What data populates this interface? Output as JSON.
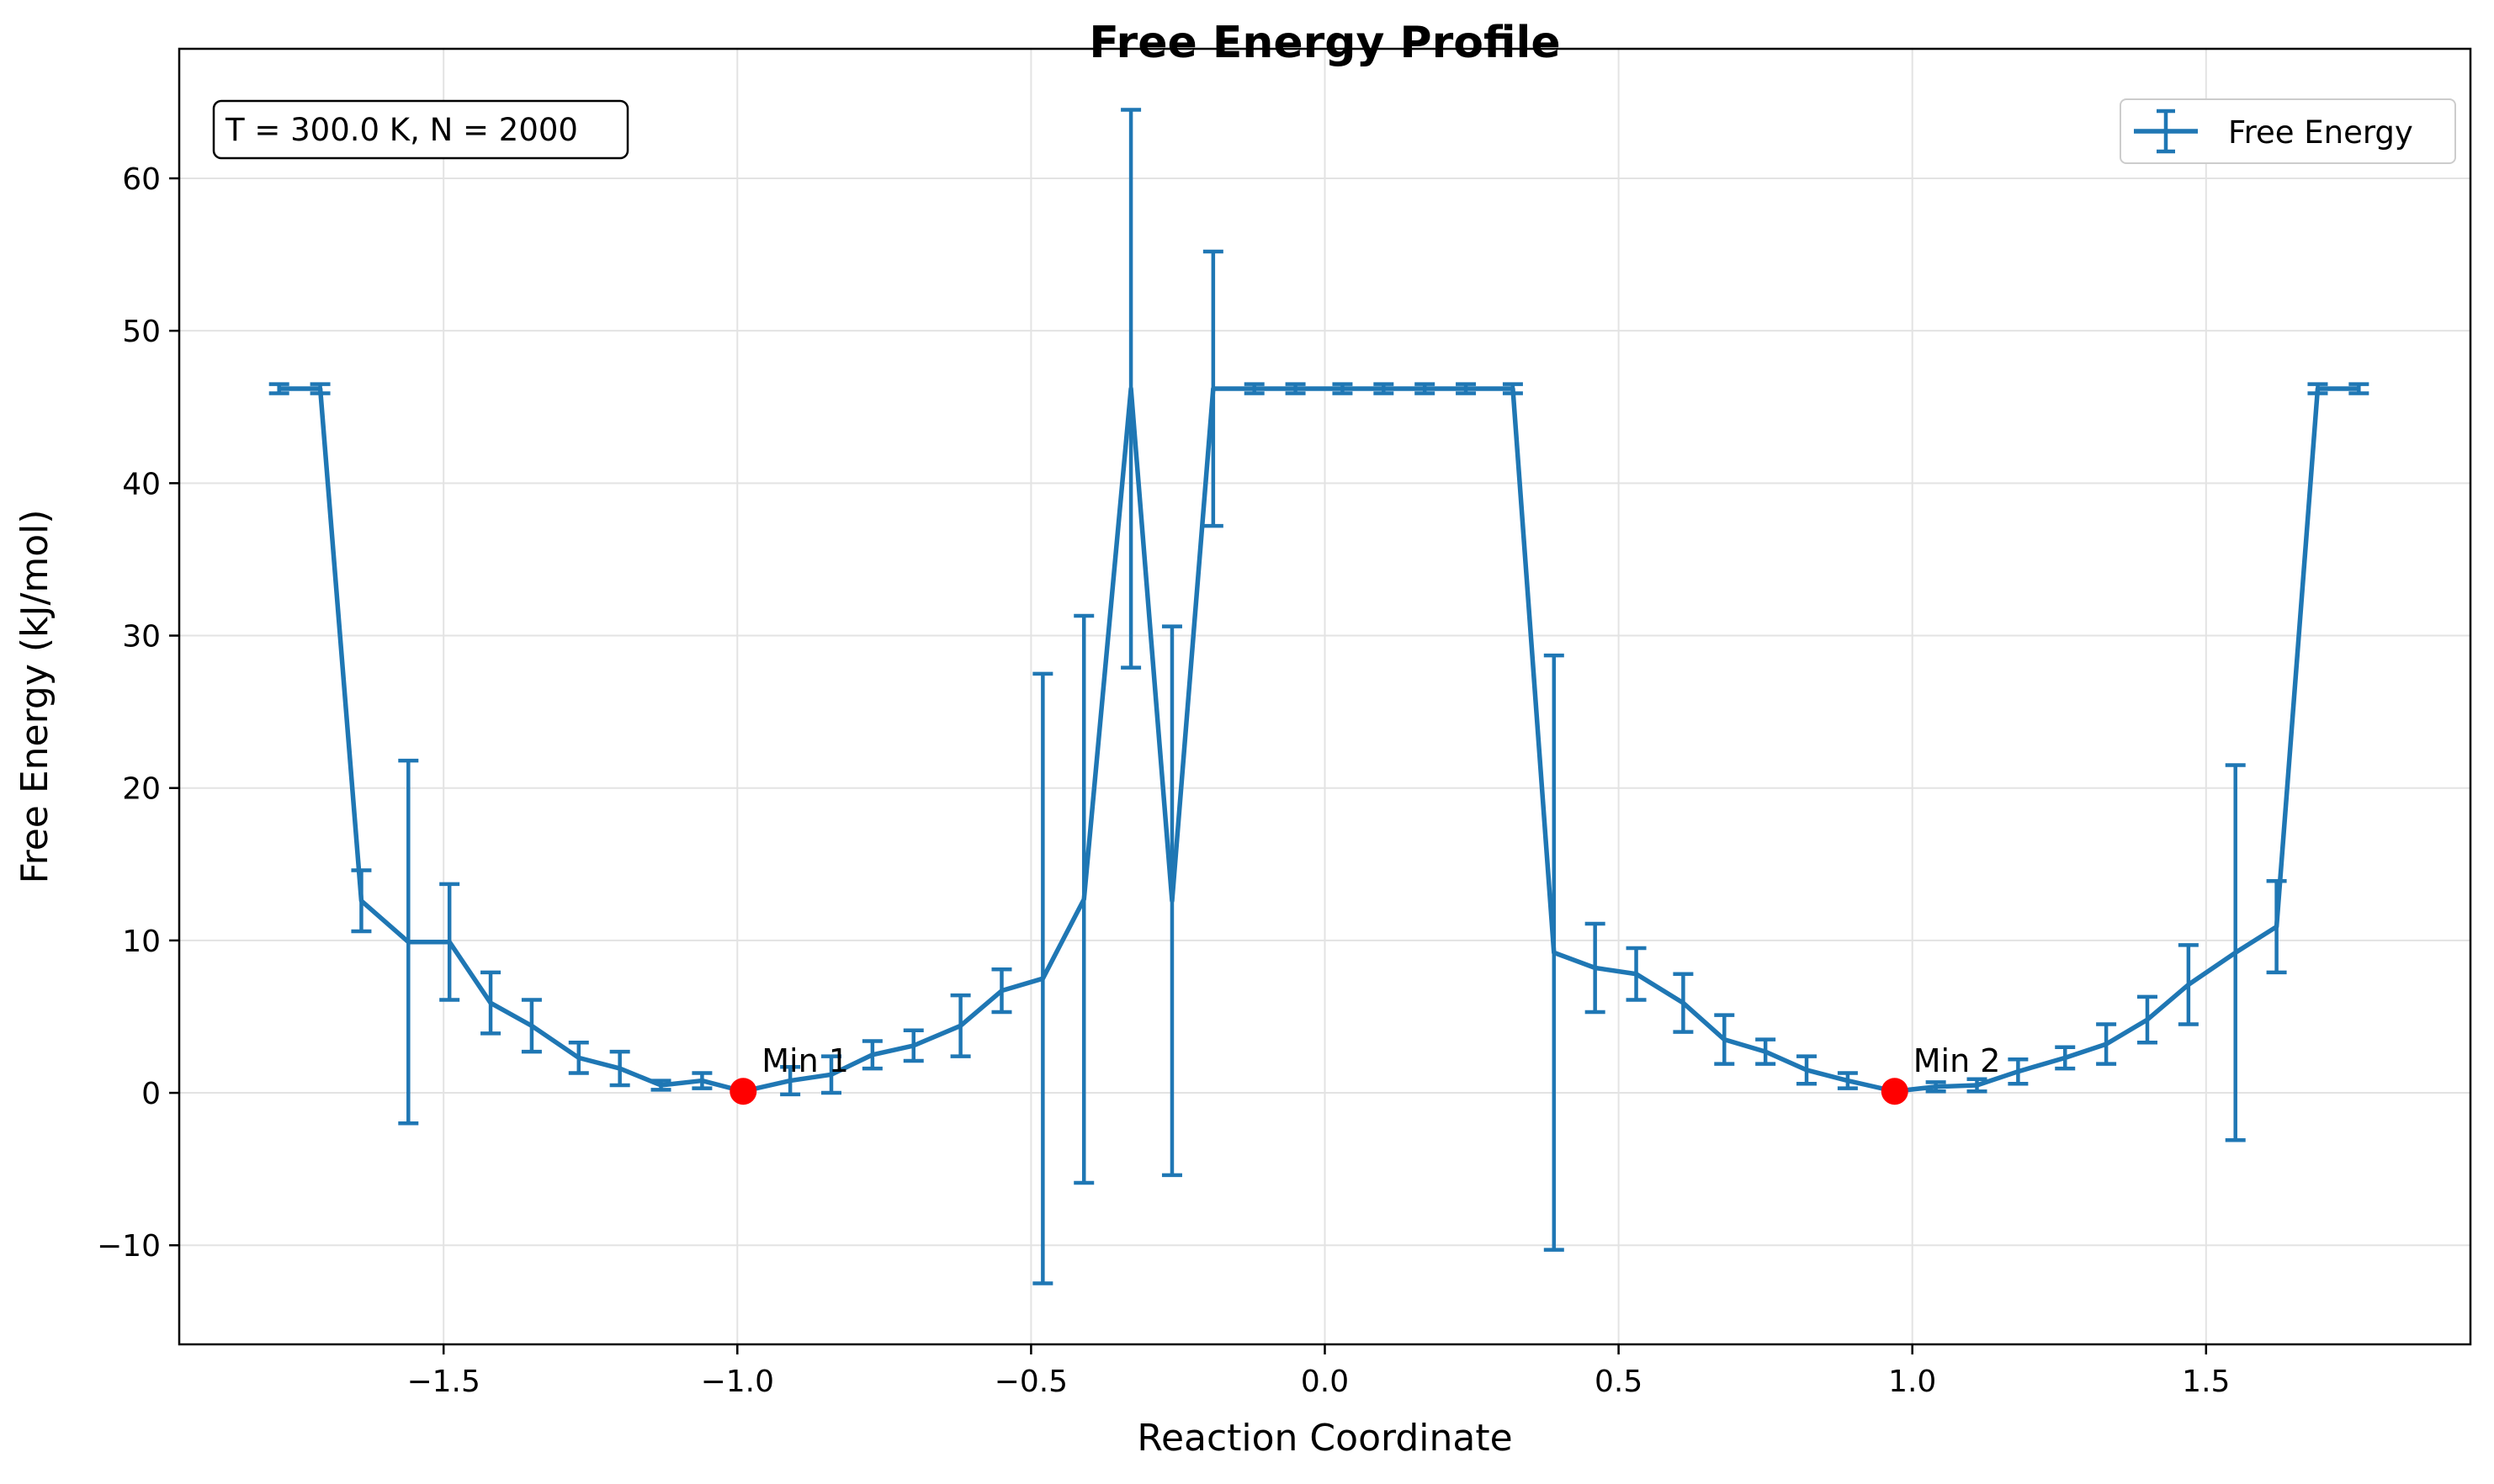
{
  "chart_data": {
    "type": "line",
    "title": "Free Energy Profile",
    "xlabel": "Reaction Coordinate",
    "ylabel": "Free Energy (kJ/mol)",
    "xlim": [
      -1.95,
      1.95
    ],
    "ylim": [
      -16.5,
      68.5
    ],
    "xticks": [
      -1.5,
      -1.0,
      -0.5,
      0.0,
      0.5,
      1.0,
      1.5
    ],
    "xtick_labels": [
      "−1.5",
      "−1.0",
      "−0.5",
      "0.0",
      "0.5",
      "1.0",
      "1.5"
    ],
    "yticks": [
      -10,
      0,
      10,
      20,
      30,
      40,
      50,
      60
    ],
    "ytick_labels": [
      "−10",
      "0",
      "10",
      "20",
      "30",
      "40",
      "50",
      "60"
    ],
    "grid": true,
    "legend": {
      "position": "top-right",
      "entries": [
        "Free Energy"
      ]
    },
    "info_box": "T = 300.0 K, N = 2000",
    "colors": {
      "series": "#1f77b4",
      "minima": "#ff0000",
      "grid": "#e3e3e3"
    },
    "series": [
      {
        "name": "Free Energy",
        "x": [
          -1.78,
          -1.71,
          -1.64,
          -1.56,
          -1.49,
          -1.42,
          -1.35,
          -1.27,
          -1.2,
          -1.13,
          -1.06,
          -0.99,
          -0.91,
          -0.84,
          -0.77,
          -0.7,
          -0.62,
          -0.55,
          -0.48,
          -0.41,
          -0.33,
          -0.26,
          -0.19,
          -0.12,
          -0.05,
          0.03,
          0.1,
          0.17,
          0.24,
          0.32,
          0.39,
          0.46,
          0.53,
          0.61,
          0.68,
          0.75,
          0.82,
          0.89,
          0.97,
          1.04,
          1.11,
          1.18,
          1.26,
          1.33,
          1.4,
          1.47,
          1.55,
          1.62,
          1.69,
          1.76
        ],
        "y": [
          46.2,
          46.2,
          12.6,
          9.9,
          9.9,
          5.9,
          4.4,
          2.3,
          1.6,
          0.5,
          0.8,
          0.1,
          0.8,
          1.2,
          2.5,
          3.1,
          4.4,
          6.7,
          7.5,
          12.7,
          46.2,
          12.6,
          46.2,
          46.2,
          46.2,
          46.2,
          46.2,
          46.2,
          46.2,
          46.2,
          9.2,
          8.2,
          7.8,
          5.9,
          3.5,
          2.7,
          1.5,
          0.8,
          0.1,
          0.4,
          0.5,
          1.4,
          2.3,
          3.2,
          4.8,
          7.1,
          9.2,
          10.9,
          46.2,
          46.2
        ],
        "yerr": [
          0.3,
          0.3,
          2.0,
          11.9,
          3.8,
          2.0,
          1.7,
          1.0,
          1.1,
          0.3,
          0.5,
          0.2,
          0.9,
          1.2,
          0.9,
          1.0,
          2.0,
          1.4,
          20.0,
          18.6,
          18.3,
          18.0,
          9.0,
          0.3,
          0.3,
          0.3,
          0.3,
          0.3,
          0.3,
          0.3,
          19.5,
          2.9,
          1.7,
          1.9,
          1.6,
          0.8,
          0.9,
          0.5,
          0.2,
          0.3,
          0.4,
          0.8,
          0.7,
          1.3,
          1.5,
          2.6,
          12.3,
          3.0,
          0.3,
          0.3
        ]
      }
    ],
    "minima": [
      {
        "label": "Min 1",
        "x": -0.99,
        "y": 0.1
      },
      {
        "label": "Min 2",
        "x": 0.97,
        "y": 0.1
      }
    ]
  }
}
